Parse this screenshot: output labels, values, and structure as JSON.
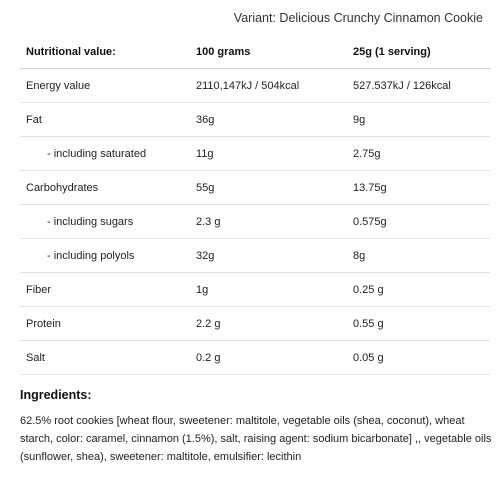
{
  "variant": "Variant: Delicious Crunchy Cinnamon Cookie",
  "table": {
    "headers": [
      "Nutritional value:",
      "100 grams",
      "25g (1 serving)"
    ],
    "rows": [
      {
        "label": "Energy value",
        "per100": "2110,147kJ / 504kcal",
        "perServing": "527.537kJ / 126kcal"
      },
      {
        "label": "Fat",
        "per100": "36g",
        "perServing": "9g"
      },
      {
        "label": "- including saturated",
        "per100": "11g",
        "perServing": "2.75g"
      },
      {
        "label": "Carbohydrates",
        "per100": "55g",
        "perServing": "13.75g"
      },
      {
        "label": "- including sugars",
        "per100": "2.3 g",
        "perServing": "0.575g"
      },
      {
        "label": "- including polyols",
        "per100": "32g",
        "perServing": "8g"
      },
      {
        "label": "Fiber",
        "per100": "1g",
        "perServing": "0.25 g"
      },
      {
        "label": "Protein",
        "per100": "2.2 g",
        "perServing": "0.55 g"
      },
      {
        "label": "Salt",
        "per100": "0.2 g",
        "perServing": "0.05 g"
      }
    ]
  },
  "ingredients": {
    "title": "Ingredients:",
    "text": "62.5% root cookies [wheat flour, sweetener: maltitole, vegetable oils (shea, coconut), wheat starch, color: caramel, cinnamon (1.5%), salt, raising agent: sodium bicarbonate] ,, vegetable oils (sunflower, shea), sweetener: maltitole, emulsifier: lecithin"
  }
}
